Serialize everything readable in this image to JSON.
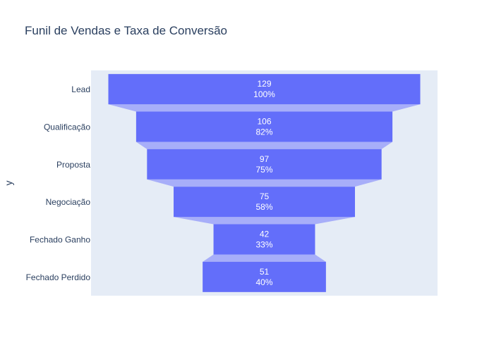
{
  "chart_data": {
    "type": "funnel",
    "title": "Funil de Vendas e Taxa de Conversão",
    "ylabel": "y",
    "categories": [
      "Lead",
      "Qualificação",
      "Proposta",
      "Negociação",
      "Fechado Ganho",
      "Fechado Perdido"
    ],
    "values": [
      129,
      106,
      97,
      75,
      42,
      51
    ],
    "percent_labels": [
      "100%",
      "82%",
      "75%",
      "58%",
      "33%",
      "40%"
    ],
    "colors": {
      "bar": "#636efa",
      "connector": "#a7aef9",
      "plot_bg": "#e5ecf6",
      "text": "#2a3f5f",
      "bar_text": "#ffffff"
    }
  }
}
